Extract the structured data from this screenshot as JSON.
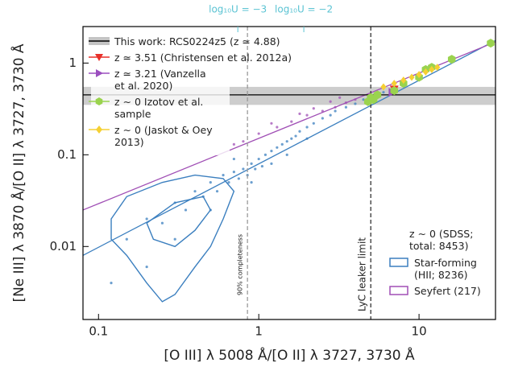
{
  "chart_data": {
    "type": "scatter",
    "x_label": "[O III] λ 5008 Å/[O II] λ 3727, 3730 Å",
    "y_label": "[Ne III] λ 3870 Å/[O II] λ 3727, 3730 Å",
    "xscale": "log",
    "yscale": "log",
    "xlim": [
      0.08,
      30
    ],
    "ylim": [
      0.0016,
      2.5
    ],
    "xticks": [
      0.1,
      1,
      10
    ],
    "yticks": [
      0.01,
      0.1,
      1
    ],
    "x2ticks": [
      {
        "value": 0.74,
        "label": "log₁₀U = −3"
      },
      {
        "value": 1.91,
        "label": "log₁₀U = −2"
      }
    ],
    "x2color": "#5bc3d3",
    "legend": "upper left",
    "this_work": {
      "name": "This work: RCS0224z5 (z ≃ 4.88)",
      "value": 0.45,
      "band": [
        0.35,
        0.55
      ],
      "color": "#000000",
      "band_color": "#c4c4c4"
    },
    "series": [
      {
        "name": "z ≃ 3.51 (Christensen et al. 2012a)",
        "color": "#e8302a",
        "marker": "triangle-down",
        "x": [
          7.0
        ],
        "values": [
          0.52
        ]
      },
      {
        "name": "z ≃ 3.21 (Vanzella et al. 2020)",
        "color": "#9b4fbf",
        "marker": "triangle-right",
        "x": [
          6.8
        ],
        "values": [
          0.48
        ]
      },
      {
        "name": "z ∼ 0 Izotov et al. sample",
        "color": "#9ad34e",
        "marker": "hexagon",
        "x": [
          4.8,
          5.0,
          5.2,
          5.5,
          7,
          8,
          10,
          11,
          12,
          16,
          28
        ],
        "values": [
          0.38,
          0.42,
          0.4,
          0.45,
          0.5,
          0.6,
          0.7,
          0.85,
          0.9,
          1.1,
          1.65
        ]
      },
      {
        "name": "z ∼ 0 (Jaskot & Oey 2013)",
        "color": "#f5d033",
        "marker": "diamond",
        "x": [
          6,
          7,
          8,
          9,
          10,
          11,
          12,
          13
        ],
        "values": [
          0.55,
          0.6,
          0.65,
          0.7,
          0.75,
          0.8,
          0.85,
          0.9
        ]
      }
    ],
    "sdss": {
      "title": "z ∼ 0 (SDSS; total: 8453)",
      "legend": "lower right",
      "series": [
        {
          "name": "Star-forming (HII; 8236)",
          "color": "#3b7fbf",
          "x": [
            0.15,
            0.2,
            0.25,
            0.3,
            0.35,
            0.4,
            0.45,
            0.5,
            0.55,
            0.6,
            0.65,
            0.7,
            0.75,
            0.8,
            0.85,
            0.9,
            0.95,
            1.0,
            1.05,
            1.1,
            1.2,
            1.3,
            1.4,
            1.5,
            1.6,
            1.7,
            1.8,
            2.0,
            2.2,
            2.5,
            2.8,
            3.0,
            3.5,
            4.0,
            4.5,
            5.0,
            6.0,
            0.9,
            1.2,
            0.7,
            1.5,
            2.0,
            0.3,
            0.5,
            0.2,
            0.12
          ],
          "values": [
            0.012,
            0.02,
            0.018,
            0.03,
            0.025,
            0.04,
            0.035,
            0.05,
            0.04,
            0.06,
            0.05,
            0.065,
            0.055,
            0.07,
            0.06,
            0.08,
            0.07,
            0.09,
            0.075,
            0.1,
            0.11,
            0.12,
            0.13,
            0.14,
            0.15,
            0.16,
            0.18,
            0.2,
            0.22,
            0.25,
            0.27,
            0.3,
            0.33,
            0.36,
            0.4,
            0.42,
            0.48,
            0.05,
            0.08,
            0.09,
            0.1,
            0.15,
            0.012,
            0.025,
            0.006,
            0.004
          ],
          "fit": {
            "x": [
              0.08,
              30
            ],
            "values": [
              0.008,
              1.76
            ]
          },
          "contours": [
            {
              "x": [
                0.12,
                0.15,
                0.25,
                0.4,
                0.6,
                0.7,
                0.6,
                0.5,
                0.4,
                0.3,
                0.25,
                0.2,
                0.15,
                0.12
              ],
              "values": [
                0.02,
                0.035,
                0.05,
                0.06,
                0.055,
                0.04,
                0.02,
                0.01,
                0.006,
                0.003,
                0.0025,
                0.004,
                0.008,
                0.012
              ]
            },
            {
              "x": [
                0.2,
                0.3,
                0.45,
                0.5,
                0.4,
                0.3,
                0.22
              ],
              "values": [
                0.018,
                0.03,
                0.035,
                0.025,
                0.015,
                0.01,
                0.012
              ]
            }
          ]
        },
        {
          "name": "Seyfert (217)",
          "color": "#a04fb5",
          "x": [
            0.7,
            1.0,
            1.3,
            1.6,
            2.0,
            2.5,
            3.0,
            3.5,
            4.0,
            1.2,
            2.2,
            0.8,
            1.8,
            2.8,
            3.2
          ],
          "values": [
            0.13,
            0.17,
            0.2,
            0.23,
            0.27,
            0.3,
            0.33,
            0.37,
            0.4,
            0.22,
            0.32,
            0.14,
            0.28,
            0.38,
            0.42
          ],
          "fit": {
            "x": [
              0.08,
              30
            ],
            "values": [
              0.025,
              1.7
            ]
          }
        }
      ]
    },
    "reference_lines": [
      {
        "label": "90% completeness",
        "x": 0.85,
        "color": "#999999"
      },
      {
        "label": "LyC leaker limit",
        "x": 5,
        "color": "#333333"
      }
    ]
  }
}
